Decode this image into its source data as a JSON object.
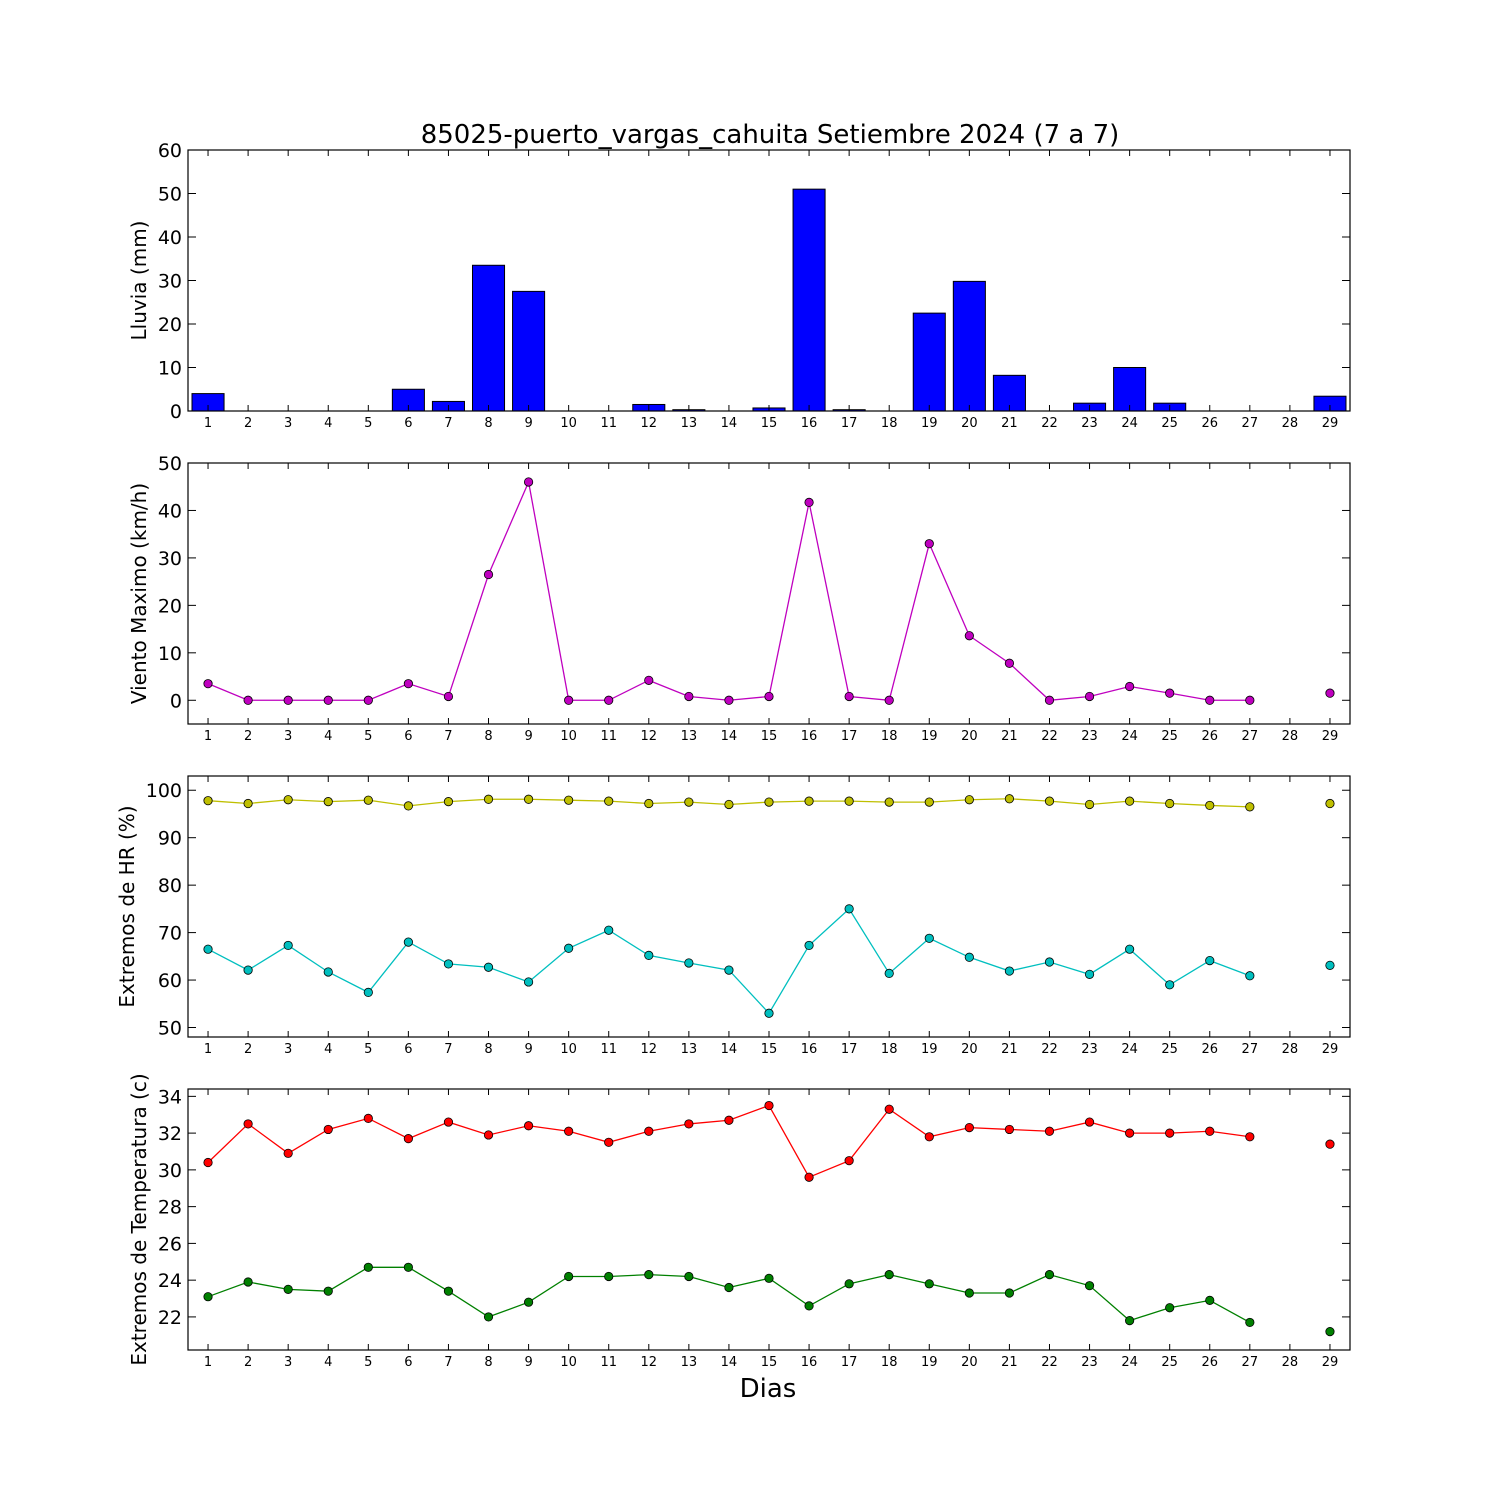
{
  "title": "85025-puerto_vargas_cahuita Setiembre 2024  (7 a 7)",
  "xlabel": "Dias",
  "chart_data": [
    {
      "type": "bar",
      "ylabel": "Lluvia (mm)",
      "ylim": [
        0,
        60
      ],
      "yticks": [
        0,
        10,
        20,
        30,
        40,
        50,
        60
      ],
      "x": [
        1,
        2,
        3,
        4,
        5,
        6,
        7,
        8,
        9,
        10,
        11,
        12,
        13,
        14,
        15,
        16,
        17,
        18,
        19,
        20,
        21,
        22,
        23,
        24,
        25,
        26,
        27,
        28,
        29
      ],
      "series": [
        {
          "color": "#0000ff",
          "values": [
            4.0,
            0,
            0,
            0,
            0,
            5.0,
            2.2,
            33.5,
            27.5,
            0,
            0,
            1.5,
            0.3,
            0,
            0.7,
            51.0,
            0.3,
            0,
            22.5,
            29.8,
            8.2,
            0,
            1.8,
            10.0,
            1.8,
            0,
            0,
            0,
            3.4
          ]
        }
      ]
    },
    {
      "type": "line",
      "ylabel": "Viento Maximo (km/h)",
      "ylim": [
        -5,
        50
      ],
      "yticks": [
        0,
        10,
        20,
        30,
        40,
        50
      ],
      "x": [
        1,
        2,
        3,
        4,
        5,
        6,
        7,
        8,
        9,
        10,
        11,
        12,
        13,
        14,
        15,
        16,
        17,
        18,
        19,
        20,
        21,
        22,
        23,
        24,
        25,
        26,
        27,
        28,
        29
      ],
      "series": [
        {
          "color": "#bf00bf",
          "values": [
            3.5,
            0,
            0,
            0,
            0,
            3.5,
            0.8,
            26.5,
            46.0,
            0,
            0,
            4.2,
            0.8,
            0,
            0.8,
            41.7,
            0.8,
            0,
            33.0,
            13.6,
            7.8,
            0,
            0.8,
            2.9,
            1.5,
            0,
            0,
            null,
            1.5
          ]
        }
      ]
    },
    {
      "type": "line",
      "ylabel": "Extremos de HR (%)",
      "ylim": [
        48,
        103
      ],
      "yticks": [
        50,
        60,
        70,
        80,
        90,
        100
      ],
      "x": [
        1,
        2,
        3,
        4,
        5,
        6,
        7,
        8,
        9,
        10,
        11,
        12,
        13,
        14,
        15,
        16,
        17,
        18,
        19,
        20,
        21,
        22,
        23,
        24,
        25,
        26,
        27,
        28,
        29
      ],
      "series": [
        {
          "color": "#bfbf00",
          "values": [
            97.8,
            97.2,
            98.0,
            97.6,
            97.9,
            96.7,
            97.6,
            98.1,
            98.1,
            97.9,
            97.7,
            97.2,
            97.5,
            97.0,
            97.5,
            97.7,
            97.7,
            97.5,
            97.5,
            98.0,
            98.2,
            97.7,
            97.0,
            97.7,
            97.2,
            96.8,
            96.5,
            null,
            97.2
          ]
        },
        {
          "color": "#00bfbf",
          "values": [
            66.5,
            62.1,
            67.3,
            61.7,
            57.4,
            68.0,
            63.4,
            62.7,
            59.6,
            66.7,
            70.5,
            65.2,
            63.6,
            62.1,
            53.0,
            67.3,
            75.0,
            61.4,
            68.8,
            64.8,
            61.9,
            63.8,
            61.2,
            66.5,
            59.0,
            64.1,
            60.9,
            null,
            63.1
          ]
        }
      ]
    },
    {
      "type": "line",
      "ylabel": "Extremos de Temperatura (c)",
      "ylim": [
        20.2,
        34.4
      ],
      "yticks": [
        22,
        24,
        26,
        28,
        30,
        32,
        34
      ],
      "x": [
        1,
        2,
        3,
        4,
        5,
        6,
        7,
        8,
        9,
        10,
        11,
        12,
        13,
        14,
        15,
        16,
        17,
        18,
        19,
        20,
        21,
        22,
        23,
        24,
        25,
        26,
        27,
        28,
        29
      ],
      "series": [
        {
          "color": "#ff0000",
          "values": [
            30.4,
            32.5,
            30.9,
            32.2,
            32.8,
            31.7,
            32.6,
            31.9,
            32.4,
            32.1,
            31.5,
            32.1,
            32.5,
            32.7,
            33.5,
            29.6,
            30.5,
            33.3,
            31.8,
            32.3,
            32.2,
            32.1,
            32.6,
            32.0,
            32.0,
            32.1,
            31.8,
            null,
            31.4
          ]
        },
        {
          "color": "#008000",
          "values": [
            23.1,
            23.9,
            23.5,
            23.4,
            24.7,
            24.7,
            23.4,
            22.0,
            22.8,
            24.2,
            24.2,
            24.3,
            24.2,
            23.6,
            24.1,
            22.6,
            23.8,
            24.3,
            23.8,
            23.3,
            23.3,
            24.3,
            23.7,
            21.8,
            22.5,
            22.9,
            21.7,
            null,
            21.2
          ]
        }
      ]
    }
  ]
}
